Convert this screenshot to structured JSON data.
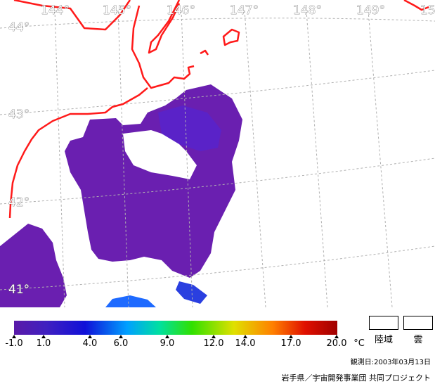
{
  "map": {
    "longitude_labels": [
      "144°",
      "145°",
      "146°",
      "147°",
      "148°",
      "149°",
      "15"
    ],
    "latitude_labels": [
      "44°",
      "43°",
      "42°",
      "41°"
    ],
    "coastline_color": "#ff1a1a",
    "grid_color": "#b0b0b0",
    "sst_color_low": "#6a1fb0",
    "sst_color_mid": "#3a2ad0",
    "sst_color_high": "#1e6aff"
  },
  "scale": {
    "tick_labels": [
      "-1.0",
      "1.0",
      "4.0",
      "6.0",
      "9.0",
      "12.0",
      "14.0",
      "17.0",
      "20.0"
    ],
    "unit": "°C",
    "min": -1.0,
    "max": 20.0
  },
  "legend": {
    "land_label": "陸域",
    "cloud_label": "雲"
  },
  "observation_date": "観測日:2003年03月13日",
  "credit": "岩手県／宇宙開発事業団 共同プロジェクト"
}
